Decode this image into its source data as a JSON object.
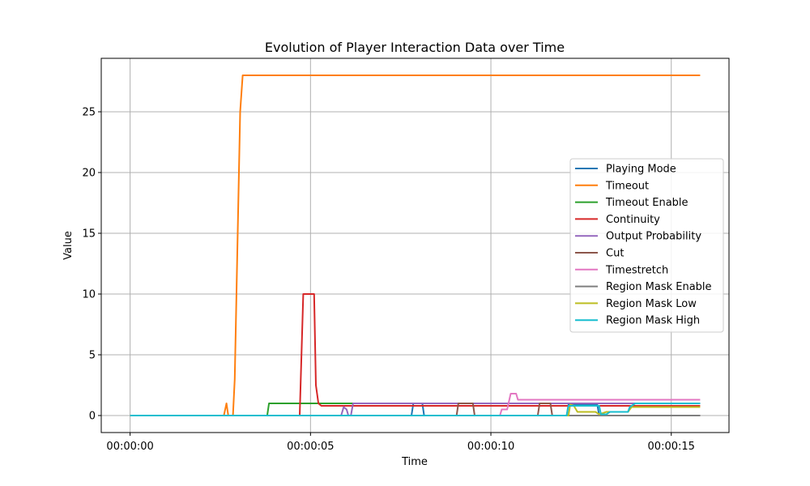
{
  "chart_data": {
    "type": "line",
    "title": "Evolution of Player Interaction Data over Time",
    "xlabel": "Time",
    "ylabel": "Value",
    "xlim": [
      -0.8,
      16.6
    ],
    "ylim": [
      -1.4,
      29.4
    ],
    "xticks": [
      0,
      5,
      10,
      15
    ],
    "xtick_labels": [
      "00:00:00",
      "00:00:05",
      "00:00:10",
      "00:00:15"
    ],
    "yticks": [
      0,
      5,
      10,
      15,
      20,
      25
    ],
    "ytick_labels": [
      "0",
      "5",
      "10",
      "15",
      "20",
      "25"
    ],
    "grid": true,
    "legend_position": "center-right",
    "series": [
      {
        "name": "Playing Mode",
        "color": "#1f77b4",
        "points": [
          [
            0,
            0
          ],
          [
            7.8,
            0
          ],
          [
            7.85,
            1
          ],
          [
            8.1,
            1
          ],
          [
            8.15,
            0
          ],
          [
            12.1,
            0
          ],
          [
            12.15,
            0.9
          ],
          [
            12.95,
            0.9
          ],
          [
            13.0,
            0
          ],
          [
            15.8,
            0
          ]
        ]
      },
      {
        "name": "Timeout",
        "color": "#ff7f0e",
        "points": [
          [
            0,
            0
          ],
          [
            2.6,
            0
          ],
          [
            2.67,
            1
          ],
          [
            2.72,
            0
          ],
          [
            2.85,
            0
          ],
          [
            2.9,
            3
          ],
          [
            3.05,
            25
          ],
          [
            3.12,
            28
          ],
          [
            15.8,
            28
          ]
        ]
      },
      {
        "name": "Timeout Enable",
        "color": "#2ca02c",
        "points": [
          [
            0,
            0
          ],
          [
            3.8,
            0
          ],
          [
            3.85,
            1
          ],
          [
            15.8,
            1
          ]
        ]
      },
      {
        "name": "Continuity",
        "color": "#d62728",
        "points": [
          [
            0,
            0
          ],
          [
            4.7,
            0
          ],
          [
            4.8,
            10
          ],
          [
            5.1,
            10
          ],
          [
            5.15,
            2.5
          ],
          [
            5.22,
            1.0
          ],
          [
            5.3,
            0.8
          ],
          [
            15.8,
            0.8
          ]
        ]
      },
      {
        "name": "Output Probability",
        "color": "#9467bd",
        "points": [
          [
            0,
            0
          ],
          [
            5.85,
            0
          ],
          [
            5.92,
            0.7
          ],
          [
            6.0,
            0.5
          ],
          [
            6.05,
            0
          ],
          [
            6.12,
            0
          ],
          [
            6.18,
            1
          ],
          [
            15.8,
            1
          ]
        ]
      },
      {
        "name": "Cut",
        "color": "#8c564b",
        "points": [
          [
            0,
            0
          ],
          [
            9.05,
            0
          ],
          [
            9.1,
            1
          ],
          [
            9.5,
            1
          ],
          [
            9.55,
            0
          ],
          [
            11.3,
            0
          ],
          [
            11.35,
            1
          ],
          [
            11.65,
            1
          ],
          [
            11.7,
            0
          ],
          [
            15.8,
            0
          ]
        ]
      },
      {
        "name": "Timestretch",
        "color": "#e377c2",
        "points": [
          [
            0,
            0
          ],
          [
            10.25,
            0
          ],
          [
            10.3,
            0.5
          ],
          [
            10.45,
            0.5
          ],
          [
            10.55,
            1.8
          ],
          [
            10.7,
            1.8
          ],
          [
            10.75,
            1.3
          ],
          [
            15.8,
            1.3
          ]
        ]
      },
      {
        "name": "Region Mask Enable",
        "color": "#7f7f7f",
        "points": [
          [
            0,
            0
          ],
          [
            15.8,
            0
          ]
        ]
      },
      {
        "name": "Region Mask Low",
        "color": "#bcbd22",
        "points": [
          [
            0,
            0
          ],
          [
            12.15,
            0
          ],
          [
            12.2,
            0.9
          ],
          [
            12.3,
            0.8
          ],
          [
            12.4,
            0.3
          ],
          [
            12.9,
            0.3
          ],
          [
            13.0,
            0.1
          ],
          [
            13.2,
            0.3
          ],
          [
            13.8,
            0.3
          ],
          [
            13.9,
            0.7
          ],
          [
            15.8,
            0.7
          ]
        ]
      },
      {
        "name": "Region Mask High",
        "color": "#17becf",
        "points": [
          [
            0,
            0
          ],
          [
            12.1,
            0
          ],
          [
            12.15,
            0.8
          ],
          [
            13.0,
            0.8
          ],
          [
            13.05,
            0.1
          ],
          [
            13.2,
            0.1
          ],
          [
            13.3,
            0.3
          ],
          [
            13.8,
            0.3
          ],
          [
            13.85,
            0.7
          ],
          [
            14.0,
            1.0
          ],
          [
            15.8,
            1.0
          ]
        ]
      }
    ]
  }
}
